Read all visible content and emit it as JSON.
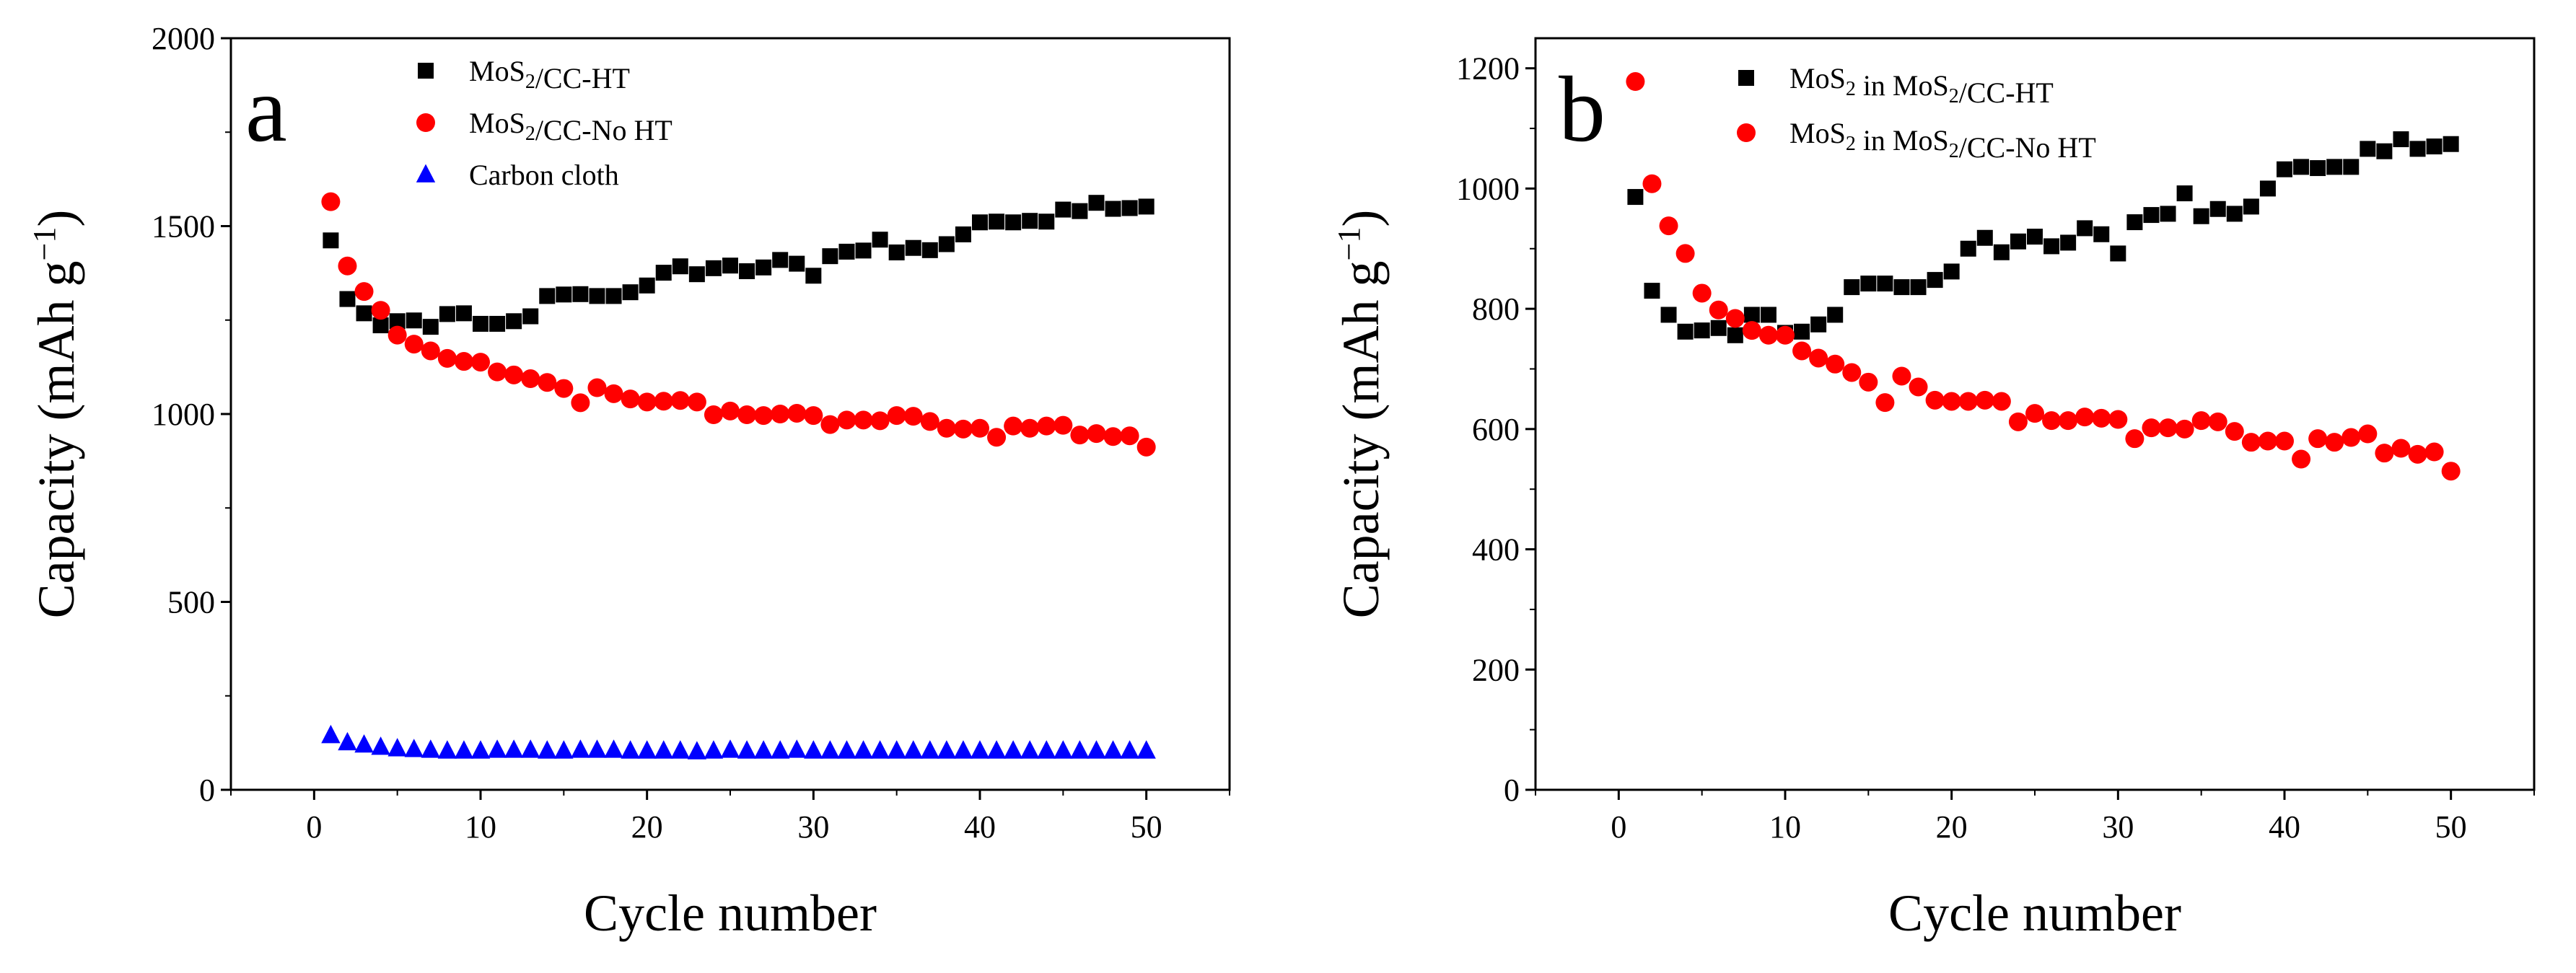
{
  "chart_data": [
    {
      "panel": "a",
      "type": "scatter",
      "xlabel": "Cycle number",
      "ylabel": "Capacity (mAh g",
      "ylabel_sup": "−1",
      "ylabel_close": ")",
      "xlim": [
        -5,
        55
      ],
      "ylim": [
        0,
        2000
      ],
      "xticks": [
        0,
        10,
        20,
        30,
        40,
        50
      ],
      "yticks": [
        0,
        500,
        1000,
        1500,
        2000
      ],
      "series": [
        {
          "name": "MoS2/CC-HT",
          "legend": {
            "pre": "MoS",
            "sub": "2",
            "post": "/CC-HT"
          },
          "marker": "square",
          "color": "#000000",
          "x": [
            1,
            2,
            3,
            4,
            5,
            6,
            7,
            8,
            9,
            10,
            11,
            12,
            13,
            14,
            15,
            16,
            17,
            18,
            19,
            20,
            21,
            22,
            23,
            24,
            25,
            26,
            27,
            28,
            29,
            30,
            31,
            32,
            33,
            34,
            35,
            36,
            37,
            38,
            39,
            40,
            41,
            42,
            43,
            44,
            45,
            46,
            47,
            48,
            49,
            50
          ],
          "values": [
            1462,
            1306,
            1268,
            1236,
            1247,
            1249,
            1232,
            1266,
            1268,
            1240,
            1240,
            1247,
            1260,
            1314,
            1318,
            1319,
            1314,
            1314,
            1324,
            1342,
            1376,
            1393,
            1372,
            1388,
            1395,
            1380,
            1390,
            1410,
            1400,
            1368,
            1420,
            1432,
            1435,
            1464,
            1430,
            1442,
            1436,
            1452,
            1478,
            1510,
            1512,
            1510,
            1514,
            1512,
            1544,
            1540,
            1562,
            1546,
            1548,
            1552
          ]
        },
        {
          "name": "MoS2/CC-No HT",
          "legend": {
            "pre": "MoS",
            "sub": "2",
            "post": "/CC-No HT"
          },
          "marker": "circle",
          "color": "#ff0000",
          "x": [
            1,
            2,
            3,
            4,
            5,
            6,
            7,
            8,
            9,
            10,
            11,
            12,
            13,
            14,
            15,
            16,
            17,
            18,
            19,
            20,
            21,
            22,
            23,
            24,
            25,
            26,
            27,
            28,
            29,
            30,
            31,
            32,
            33,
            34,
            35,
            36,
            37,
            38,
            39,
            40,
            41,
            42,
            43,
            44,
            45,
            46,
            47,
            48,
            49,
            50
          ],
          "values": [
            1565,
            1394,
            1326,
            1276,
            1210,
            1186,
            1168,
            1148,
            1140,
            1138,
            1112,
            1104,
            1094,
            1084,
            1068,
            1030,
            1070,
            1054,
            1040,
            1032,
            1034,
            1036,
            1032,
            998,
            1008,
            998,
            996,
            1000,
            1002,
            996,
            972,
            984,
            984,
            982,
            996,
            994,
            980,
            962,
            960,
            962,
            938,
            968,
            962,
            968,
            970,
            944,
            948,
            940,
            942,
            912
          ]
        },
        {
          "name": "Carbon cloth",
          "legend": {
            "pre": "Carbon cloth",
            "sub": "",
            "post": ""
          },
          "marker": "triangle",
          "color": "#0000ff",
          "x": [
            1,
            2,
            3,
            4,
            5,
            6,
            7,
            8,
            9,
            10,
            11,
            12,
            13,
            14,
            15,
            16,
            17,
            18,
            19,
            20,
            21,
            22,
            23,
            24,
            25,
            26,
            27,
            28,
            29,
            30,
            31,
            32,
            33,
            34,
            35,
            36,
            37,
            38,
            39,
            40,
            41,
            42,
            43,
            44,
            45,
            46,
            47,
            48,
            49,
            50
          ],
          "values": [
            145,
            126,
            120,
            114,
            110,
            108,
            106,
            104,
            104,
            104,
            106,
            106,
            106,
            104,
            104,
            106,
            106,
            106,
            104,
            104,
            104,
            104,
            102,
            104,
            106,
            104,
            104,
            104,
            106,
            104,
            104,
            104,
            104,
            104,
            104,
            104,
            104,
            104,
            104,
            104,
            104,
            104,
            104,
            104,
            104,
            104,
            104,
            104,
            104,
            104
          ]
        }
      ]
    },
    {
      "panel": "b",
      "type": "scatter",
      "xlabel": "Cycle number",
      "ylabel": "Capacity (mAh g",
      "ylabel_sup": "−1",
      "ylabel_close": ")",
      "xlim": [
        -5,
        55
      ],
      "ylim": [
        0,
        1250
      ],
      "xticks": [
        0,
        10,
        20,
        30,
        40,
        50
      ],
      "yticks": [
        0,
        200,
        400,
        600,
        800,
        1000,
        1200
      ],
      "series": [
        {
          "name": "MoS2 in MoS2/CC-HT",
          "legend": {
            "pre": "MoS",
            "sub": "2",
            "post": " in MoS",
            "sub2": "2",
            "post2": "/CC-HT"
          },
          "marker": "square",
          "color": "#000000",
          "x": [
            1,
            2,
            3,
            4,
            5,
            6,
            7,
            8,
            9,
            10,
            11,
            12,
            13,
            14,
            15,
            16,
            17,
            18,
            19,
            20,
            21,
            22,
            23,
            24,
            25,
            26,
            27,
            28,
            29,
            30,
            31,
            32,
            33,
            34,
            35,
            36,
            37,
            38,
            39,
            40,
            41,
            42,
            43,
            44,
            45,
            46,
            47,
            48,
            49,
            50
          ],
          "values": [
            986,
            830,
            790,
            762,
            764,
            768,
            756,
            790,
            790,
            760,
            762,
            774,
            790,
            836,
            842,
            842,
            836,
            836,
            848,
            862,
            900,
            918,
            894,
            912,
            920,
            904,
            910,
            934,
            924,
            892,
            944,
            956,
            958,
            992,
            954,
            966,
            958,
            970,
            1000,
            1032,
            1036,
            1034,
            1036,
            1036,
            1066,
            1062,
            1082,
            1066,
            1070,
            1074
          ]
        },
        {
          "name": "MoS2 in MoS2/CC-No HT",
          "legend": {
            "pre": "MoS",
            "sub": "2",
            "post": " in MoS",
            "sub2": "2",
            "post2": "/CC-No HT"
          },
          "marker": "circle",
          "color": "#ff0000",
          "x": [
            1,
            2,
            3,
            4,
            5,
            6,
            7,
            8,
            9,
            10,
            11,
            12,
            13,
            14,
            15,
            16,
            17,
            18,
            19,
            20,
            21,
            22,
            23,
            24,
            25,
            26,
            27,
            28,
            29,
            30,
            31,
            32,
            33,
            34,
            35,
            36,
            37,
            38,
            39,
            40,
            41,
            42,
            43,
            44,
            45,
            46,
            47,
            48,
            49,
            50
          ],
          "values": [
            1178,
            1008,
            938,
            892,
            826,
            798,
            784,
            764,
            756,
            756,
            730,
            718,
            708,
            694,
            678,
            644,
            688,
            670,
            648,
            646,
            646,
            648,
            646,
            612,
            626,
            614,
            614,
            620,
            618,
            616,
            584,
            602,
            602,
            600,
            614,
            612,
            596,
            578,
            580,
            580,
            550,
            584,
            578,
            586,
            592,
            560,
            568,
            558,
            562,
            530
          ]
        }
      ]
    }
  ]
}
